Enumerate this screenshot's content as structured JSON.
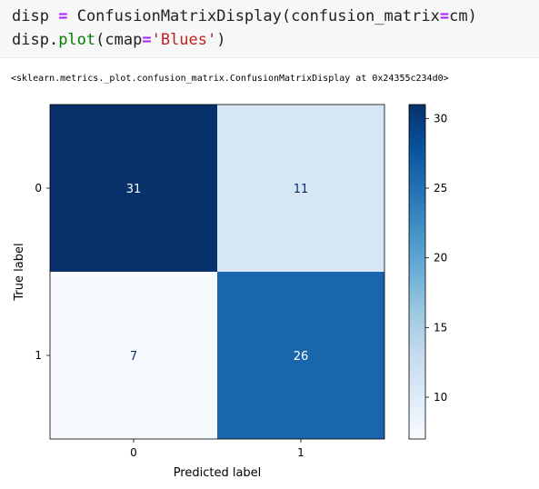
{
  "code": {
    "line1": {
      "var": "disp",
      "op": "=",
      "call": "ConfusionMatrixDisplay(confusion_matrix",
      "kw_op": "=",
      "arg": "cm)"
    },
    "line2": {
      "obj": "disp.",
      "method": "plot",
      "open": "(cmap",
      "kw_op": "=",
      "str": "'Blues'",
      "close": ")"
    }
  },
  "output_text": "<sklearn.metrics._plot.confusion_matrix.ConfusionMatrixDisplay at 0x24355c234d0>",
  "chart_data": {
    "type": "heatmap",
    "colormap": "Blues",
    "xlabel": "Predicted label",
    "ylabel": "True label",
    "x_ticks": [
      "0",
      "1"
    ],
    "y_ticks": [
      "0",
      "1"
    ],
    "matrix": [
      [
        31,
        11
      ],
      [
        7,
        26
      ]
    ],
    "colorbar": {
      "min": 7,
      "max": 31,
      "ticks": [
        10,
        15,
        20,
        25,
        30
      ]
    },
    "colors": {
      "dark": "#08306b",
      "light": "#f7fbff",
      "text_dark": "#ffffff",
      "text_light": "#08306b"
    }
  }
}
